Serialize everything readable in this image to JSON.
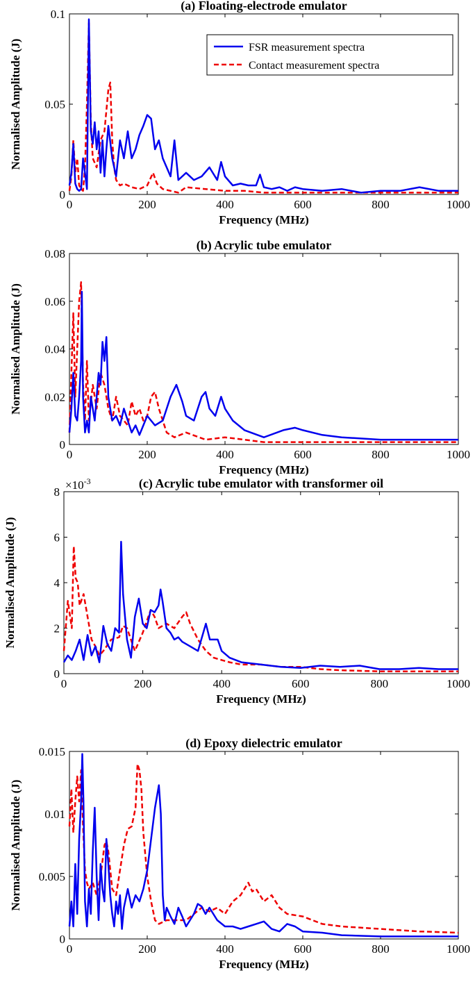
{
  "colors": {
    "fsr": "#0000ee",
    "contact": "#ee0000",
    "axis": "#000000"
  },
  "legend": {
    "fsr_label": "FSR measurement spectra",
    "contact_label": "Contact measurement spectra"
  },
  "chart_data": [
    {
      "type": "line",
      "title": "(a) Floating-electrode emulator",
      "xlabel": "Frequency (MHz)",
      "ylabel": "Normalised Amplitude (J)",
      "xlim": [
        0,
        1000
      ],
      "ylim": [
        0,
        0.1
      ],
      "xticks": [
        "0",
        "200",
        "400",
        "600",
        "800",
        "1000"
      ],
      "yticks": [
        "0",
        "0.05",
        "0.1"
      ],
      "ytick_values": [
        0,
        0.05,
        0.1
      ],
      "legend": "top-right",
      "series": [
        {
          "name": "FSR measurement spectra",
          "x": [
            0,
            5,
            10,
            15,
            20,
            25,
            30,
            35,
            40,
            45,
            50,
            55,
            60,
            65,
            70,
            75,
            80,
            85,
            90,
            95,
            100,
            110,
            120,
            130,
            140,
            150,
            160,
            170,
            180,
            190,
            200,
            210,
            220,
            230,
            240,
            250,
            260,
            270,
            280,
            290,
            300,
            320,
            340,
            360,
            380,
            390,
            400,
            420,
            440,
            460,
            480,
            490,
            500,
            520,
            540,
            560,
            580,
            600,
            650,
            700,
            750,
            800,
            850,
            900,
            950,
            1000
          ],
          "y": [
            0.005,
            0.012,
            0.028,
            0.006,
            0.003,
            0.002,
            0.003,
            0.02,
            0.012,
            0.003,
            0.097,
            0.035,
            0.028,
            0.04,
            0.025,
            0.035,
            0.012,
            0.03,
            0.01,
            0.025,
            0.038,
            0.02,
            0.01,
            0.03,
            0.02,
            0.035,
            0.02,
            0.025,
            0.033,
            0.038,
            0.044,
            0.042,
            0.025,
            0.03,
            0.02,
            0.015,
            0.01,
            0.03,
            0.008,
            0.01,
            0.012,
            0.008,
            0.01,
            0.015,
            0.008,
            0.018,
            0.01,
            0.005,
            0.006,
            0.005,
            0.005,
            0.011,
            0.004,
            0.003,
            0.004,
            0.002,
            0.004,
            0.003,
            0.002,
            0.003,
            0.001,
            0.002,
            0.002,
            0.004,
            0.002,
            0.002
          ]
        },
        {
          "name": "Contact measurement spectra",
          "x": [
            0,
            5,
            10,
            15,
            20,
            25,
            30,
            35,
            40,
            45,
            50,
            55,
            60,
            70,
            80,
            90,
            100,
            105,
            110,
            115,
            120,
            130,
            140,
            160,
            180,
            200,
            215,
            225,
            240,
            260,
            280,
            300,
            350,
            400,
            450,
            500,
            550,
            600,
            700,
            800,
            900,
            1000
          ],
          "y": [
            0.002,
            0.01,
            0.03,
            0.012,
            0.02,
            0.005,
            0.003,
            0.002,
            0.015,
            0.05,
            0.095,
            0.04,
            0.02,
            0.015,
            0.03,
            0.035,
            0.058,
            0.062,
            0.03,
            0.015,
            0.008,
            0.005,
            0.006,
            0.004,
            0.003,
            0.005,
            0.012,
            0.006,
            0.003,
            0.002,
            0.001,
            0.004,
            0.003,
            0.002,
            0.002,
            0.001,
            0.001,
            0.001,
            0.001,
            0.001,
            0.001,
            0.001
          ]
        }
      ]
    },
    {
      "type": "line",
      "title": "(b) Acrylic tube emulator",
      "xlabel": "Frequency (MHz)",
      "ylabel": "Normalised Amplitude (J)",
      "xlim": [
        0,
        1000
      ],
      "ylim": [
        0,
        0.08
      ],
      "xticks": [
        "0",
        "200",
        "400",
        "600",
        "800",
        "1000"
      ],
      "yticks": [
        "0",
        "0.02",
        "0.04",
        "0.06",
        "0.08"
      ],
      "ytick_values": [
        0,
        0.02,
        0.04,
        0.06,
        0.08
      ],
      "series": [
        {
          "name": "FSR measurement spectra",
          "x": [
            0,
            5,
            10,
            15,
            20,
            25,
            30,
            32,
            35,
            40,
            45,
            50,
            55,
            60,
            65,
            70,
            75,
            80,
            85,
            90,
            95,
            100,
            110,
            120,
            130,
            140,
            150,
            160,
            170,
            180,
            190,
            200,
            220,
            240,
            260,
            275,
            290,
            300,
            320,
            340,
            350,
            360,
            375,
            390,
            400,
            420,
            450,
            500,
            550,
            580,
            600,
            650,
            700,
            800,
            900,
            1000
          ],
          "y": [
            0.005,
            0.015,
            0.03,
            0.012,
            0.01,
            0.02,
            0.035,
            0.064,
            0.02,
            0.005,
            0.01,
            0.005,
            0.02,
            0.015,
            0.01,
            0.02,
            0.03,
            0.025,
            0.043,
            0.035,
            0.045,
            0.02,
            0.01,
            0.012,
            0.008,
            0.015,
            0.01,
            0.005,
            0.008,
            0.004,
            0.008,
            0.012,
            0.008,
            0.01,
            0.02,
            0.025,
            0.018,
            0.012,
            0.01,
            0.02,
            0.022,
            0.015,
            0.012,
            0.02,
            0.015,
            0.01,
            0.006,
            0.003,
            0.006,
            0.007,
            0.006,
            0.004,
            0.003,
            0.002,
            0.002,
            0.002
          ]
        },
        {
          "name": "Contact measurement spectra",
          "x": [
            0,
            5,
            10,
            15,
            20,
            25,
            30,
            35,
            40,
            45,
            50,
            60,
            70,
            80,
            90,
            100,
            110,
            120,
            130,
            140,
            150,
            160,
            170,
            180,
            190,
            200,
            210,
            220,
            230,
            250,
            270,
            300,
            350,
            400,
            500,
            600,
            800,
            1000
          ],
          "y": [
            0.005,
            0.03,
            0.055,
            0.02,
            0.04,
            0.06,
            0.068,
            0.025,
            0.01,
            0.035,
            0.01,
            0.025,
            0.015,
            0.03,
            0.025,
            0.015,
            0.01,
            0.02,
            0.012,
            0.01,
            0.008,
            0.018,
            0.012,
            0.015,
            0.01,
            0.012,
            0.02,
            0.022,
            0.015,
            0.005,
            0.003,
            0.005,
            0.002,
            0.003,
            0.001,
            0.001,
            0.001,
            0.001
          ]
        }
      ]
    },
    {
      "type": "line",
      "title": "(c) Acrylic tube emulator with transformer oil",
      "xlabel": "Frequency (MHz)",
      "ylabel": "Normalised Amplitude (J)",
      "scale_prefix": "×10",
      "scale_exp": "-3",
      "xlim": [
        0,
        1000
      ],
      "ylim": [
        0,
        8
      ],
      "xticks": [
        "0",
        "200",
        "400",
        "600",
        "800",
        "1000"
      ],
      "yticks": [
        "0",
        "2",
        "4",
        "6",
        "8"
      ],
      "ytick_values": [
        0,
        2,
        4,
        6,
        8
      ],
      "series": [
        {
          "name": "FSR measurement spectra",
          "x": [
            0,
            10,
            20,
            30,
            40,
            50,
            60,
            70,
            80,
            90,
            100,
            110,
            120,
            130,
            140,
            145,
            150,
            160,
            170,
            180,
            190,
            200,
            210,
            220,
            230,
            240,
            245,
            250,
            260,
            270,
            280,
            290,
            300,
            320,
            340,
            360,
            370,
            380,
            390,
            400,
            420,
            450,
            500,
            550,
            600,
            650,
            700,
            750,
            800,
            850,
            900,
            950,
            1000
          ],
          "y": [
            0.5,
            0.8,
            0.6,
            1.0,
            1.5,
            0.6,
            1.7,
            0.8,
            1.2,
            0.5,
            2.1,
            1.3,
            1.0,
            2.0,
            1.8,
            5.8,
            3.5,
            1.5,
            0.7,
            2.5,
            3.3,
            2.2,
            2.0,
            2.8,
            2.7,
            3.0,
            3.7,
            3.2,
            2.0,
            1.8,
            1.5,
            1.6,
            1.4,
            1.2,
            1.0,
            2.2,
            1.5,
            1.5,
            1.5,
            1.0,
            0.7,
            0.5,
            0.4,
            0.3,
            0.25,
            0.35,
            0.3,
            0.35,
            0.2,
            0.2,
            0.25,
            0.2,
            0.2
          ]
        },
        {
          "name": "Contact measurement spectra",
          "x": [
            0,
            10,
            20,
            25,
            30,
            35,
            40,
            50,
            60,
            70,
            80,
            90,
            100,
            120,
            140,
            150,
            160,
            180,
            200,
            220,
            230,
            240,
            260,
            280,
            300,
            310,
            320,
            340,
            360,
            380,
            400,
            420,
            450,
            500,
            550,
            600,
            650,
            700,
            800,
            900,
            1000
          ],
          "y": [
            1.0,
            3.2,
            2.0,
            5.6,
            4.2,
            4.0,
            3.0,
            3.5,
            2.5,
            1.5,
            1.2,
            0.8,
            1.0,
            1.5,
            1.6,
            2.1,
            2.0,
            1.0,
            1.8,
            2.8,
            2.5,
            2.0,
            2.2,
            2.0,
            2.5,
            2.7,
            2.2,
            1.5,
            1.0,
            0.7,
            0.6,
            0.5,
            0.4,
            0.4,
            0.3,
            0.3,
            0.2,
            0.15,
            0.1,
            0.1,
            0.1
          ]
        }
      ]
    },
    {
      "type": "line",
      "title": "(d) Epoxy dielectric emulator",
      "xlabel": "Frequency (MHz)",
      "ylabel": "Normalised Amplitude (J)",
      "xlim": [
        0,
        1000
      ],
      "ylim": [
        0,
        0.015
      ],
      "xticks": [
        "0",
        "200",
        "400",
        "600",
        "800",
        "1000"
      ],
      "yticks": [
        "0",
        "0.005",
        "0.01",
        "0.015"
      ],
      "ytick_values": [
        0,
        0.005,
        0.01,
        0.015
      ],
      "series": [
        {
          "name": "FSR measurement spectra",
          "x": [
            0,
            5,
            10,
            15,
            20,
            25,
            30,
            33,
            36,
            40,
            45,
            50,
            55,
            60,
            65,
            70,
            75,
            80,
            85,
            90,
            95,
            100,
            105,
            110,
            115,
            120,
            125,
            130,
            135,
            140,
            150,
            160,
            170,
            180,
            190,
            200,
            210,
            220,
            230,
            235,
            240,
            245,
            250,
            260,
            270,
            280,
            290,
            300,
            310,
            320,
            330,
            340,
            350,
            360,
            380,
            400,
            420,
            440,
            460,
            480,
            500,
            520,
            540,
            560,
            580,
            600,
            650,
            700,
            800,
            900,
            1000
          ],
          "y": [
            0.001,
            0.003,
            0.001,
            0.006,
            0.002,
            0.008,
            0.011,
            0.0148,
            0.011,
            0.003,
            0.001,
            0.004,
            0.002,
            0.007,
            0.0105,
            0.005,
            0.0015,
            0.006,
            0.004,
            0.003,
            0.008,
            0.006,
            0.0035,
            0.002,
            0.001,
            0.003,
            0.002,
            0.0035,
            0.0008,
            0.0025,
            0.004,
            0.0025,
            0.0035,
            0.003,
            0.004,
            0.0055,
            0.008,
            0.0105,
            0.0123,
            0.01,
            0.0035,
            0.0015,
            0.0025,
            0.0018,
            0.0012,
            0.0025,
            0.0018,
            0.001,
            0.0015,
            0.002,
            0.0028,
            0.0026,
            0.002,
            0.0025,
            0.0015,
            0.001,
            0.001,
            0.0008,
            0.001,
            0.0012,
            0.0014,
            0.0008,
            0.0006,
            0.0012,
            0.001,
            0.0006,
            0.0005,
            0.0003,
            0.0002,
            0.0002,
            0.0002
          ]
        },
        {
          "name": "Contact measurement spectra",
          "x": [
            0,
            5,
            10,
            15,
            20,
            25,
            30,
            35,
            40,
            45,
            50,
            60,
            70,
            80,
            90,
            95,
            100,
            110,
            120,
            130,
            140,
            150,
            160,
            170,
            175,
            180,
            185,
            190,
            200,
            210,
            220,
            230,
            250,
            270,
            300,
            320,
            340,
            360,
            380,
            400,
            420,
            440,
            460,
            470,
            480,
            500,
            520,
            540,
            560,
            600,
            650,
            700,
            800,
            900,
            1000
          ],
          "y": [
            0.009,
            0.012,
            0.0085,
            0.011,
            0.013,
            0.011,
            0.0135,
            0.009,
            0.0055,
            0.0045,
            0.004,
            0.0045,
            0.0035,
            0.005,
            0.0075,
            0.0078,
            0.007,
            0.004,
            0.0035,
            0.0055,
            0.0075,
            0.0088,
            0.009,
            0.0105,
            0.014,
            0.0135,
            0.012,
            0.0085,
            0.005,
            0.003,
            0.0015,
            0.0012,
            0.0015,
            0.0015,
            0.0015,
            0.002,
            0.0025,
            0.0022,
            0.0025,
            0.002,
            0.003,
            0.0035,
            0.0045,
            0.0038,
            0.004,
            0.003,
            0.0035,
            0.0025,
            0.002,
            0.0018,
            0.0012,
            0.001,
            0.0008,
            0.0006,
            0.0005
          ]
        }
      ]
    }
  ]
}
